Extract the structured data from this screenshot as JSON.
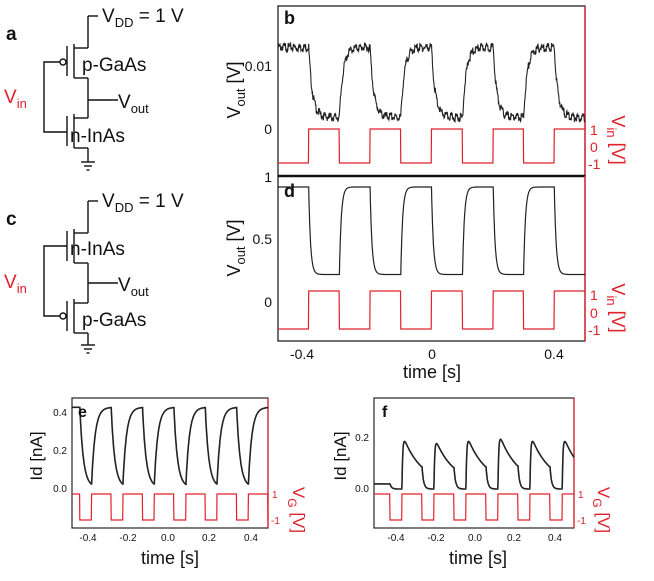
{
  "colors": {
    "black": "#111111",
    "red": "#e0202a",
    "trace": "#222222"
  },
  "circuits": {
    "a": {
      "panel_label": "a",
      "vdd_label": "V",
      "vdd_sub": "DD",
      "vdd_value": " = 1 V",
      "top_device": "p-GaAs",
      "bottom_device": "n-InAs",
      "vin_main": "V",
      "vin_sub": "in",
      "vout_main": "V",
      "vout_sub": "out"
    },
    "c": {
      "panel_label": "c",
      "vdd_label": "V",
      "vdd_sub": "DD",
      "vdd_value": " = 1 V",
      "top_device": "n-InAs",
      "bottom_device": "p-GaAs",
      "vin_main": "V",
      "vin_sub": "in",
      "vout_main": "V",
      "vout_sub": "out"
    }
  },
  "chart_data": [
    {
      "id": "b",
      "type": "line",
      "panel_label": "b",
      "ylabel_main": "V",
      "ylabel_sub": "out",
      "ylabel_unit": " [V]",
      "y2label_main": "V",
      "y2label_sub": "in",
      "y2label_unit": " [V]",
      "y_ticks": [
        "0",
        "0.01"
      ],
      "y_tick_values": [
        0,
        0.01
      ],
      "y2_ticks": [
        "1",
        "0",
        "-1"
      ],
      "y2_tick_values": [
        1,
        0,
        -1
      ],
      "vout_low": 0.0017,
      "vout_high": 0.0128,
      "vin_low": -1,
      "vin_high": 1,
      "period_s": 0.2,
      "high_start_s": 0.0,
      "xlim": [
        -0.5,
        0.5
      ]
    },
    {
      "id": "d",
      "type": "line",
      "panel_label": "d",
      "ylabel_main": "V",
      "ylabel_sub": "out",
      "ylabel_unit": " [V]",
      "y2label_main": "V",
      "y2label_sub": "in",
      "y2label_unit": " [V]",
      "y_ticks": [
        "1",
        "0.5",
        "0"
      ],
      "y_tick_values": [
        1,
        0.5,
        0
      ],
      "y2_ticks": [
        "1",
        "0",
        "-1"
      ],
      "y2_tick_values": [
        1,
        0,
        -1
      ],
      "x_ticks": [
        "-0.4",
        "0",
        "0.4"
      ],
      "x_tick_values": [
        -0.4,
        0,
        0.4
      ],
      "xlabel": "time [s]",
      "vout_low": 0.22,
      "vout_high": 0.92,
      "vin_low": -1,
      "vin_high": 1,
      "period_s": 0.2,
      "high_start_s": 0.0,
      "xlim": [
        -0.5,
        0.5
      ]
    },
    {
      "id": "e",
      "type": "line",
      "panel_label": "e",
      "ylabel_main": "Id",
      "ylabel_unit": " [nA]",
      "y2label_main": "V",
      "y2label_sub": "G",
      "y2label_unit": " [V]",
      "y_ticks": [
        "0.4",
        "0.2",
        "0.0"
      ],
      "y_tick_values": [
        0.4,
        0.2,
        0.0
      ],
      "y2_ticks": [
        "1",
        "-1"
      ],
      "y2_tick_values": [
        1,
        -1
      ],
      "x_ticks": [
        "-0.4",
        "-0.2",
        "0.0",
        "0.2",
        "0.4"
      ],
      "x_tick_values": [
        -0.4,
        -0.2,
        0.0,
        0.2,
        0.4
      ],
      "xlabel": "time [s]",
      "id_low": 0.01,
      "id_high": 0.43,
      "vg_low": -1,
      "vg_high": 1,
      "period_s": 0.16,
      "xlim": [
        -0.5,
        0.5
      ]
    },
    {
      "id": "f",
      "type": "line",
      "panel_label": "f",
      "ylabel_main": "Id",
      "ylabel_unit": " [nA]",
      "y2label_main": "V",
      "y2label_sub": "G",
      "y2label_unit": " [V]",
      "y_ticks": [
        "0.2",
        "0.0"
      ],
      "y_tick_values": [
        0.2,
        0.0
      ],
      "y2_ticks": [
        "1",
        "-1"
      ],
      "y2_tick_values": [
        1,
        -1
      ],
      "x_ticks": [
        "-0.4",
        "-0.2",
        "0.0",
        "0.2",
        "0.4"
      ],
      "x_tick_values": [
        -0.4,
        -0.2,
        0.0,
        0.2,
        0.4
      ],
      "xlabel": "time [s]",
      "id_low": 0.0,
      "id_peaks": [
        0.21,
        0.2,
        0.19,
        0.2,
        0.21,
        0.2
      ],
      "vg_low": -1,
      "vg_high": 1,
      "period_s": 0.16,
      "xlim": [
        -0.5,
        0.5
      ]
    }
  ]
}
